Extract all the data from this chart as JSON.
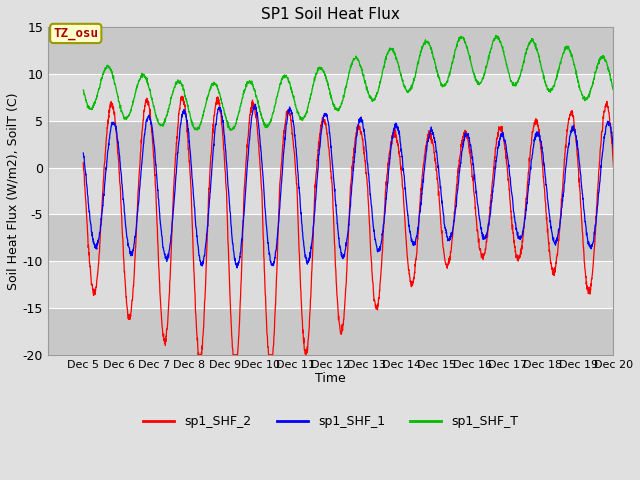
{
  "title": "SP1 Soil Heat Flux",
  "xlabel": "Time",
  "ylabel": "Soil Heat Flux (W/m2), SoilT (C)",
  "xlim_days": [
    4.0,
    20.0
  ],
  "ylim": [
    -20,
    15
  ],
  "yticks": [
    -20,
    -15,
    -10,
    -5,
    0,
    5,
    10,
    15
  ],
  "xtick_labels": [
    "Dec 5",
    "Dec 6",
    "Dec 7",
    "Dec 8",
    "Dec 9",
    "Dec 10",
    "Dec 11",
    "Dec 12",
    "Dec 13",
    "Dec 14",
    "Dec 15",
    "Dec 16",
    "Dec 17",
    "Dec 18",
    "Dec 19",
    "Dec 20"
  ],
  "color_red": "#FF0000",
  "color_blue": "#0000FF",
  "color_green": "#00BB00",
  "legend_labels": [
    "sp1_SHF_2",
    "sp1_SHF_1",
    "sp1_SHF_T"
  ],
  "annotation_text": "TZ_osu",
  "annotation_color": "#AA0000",
  "annotation_bg": "#FFFFCC",
  "background_color": "#E0E0E0",
  "band_light": "#DCDCDC",
  "band_dark": "#C8C8C8",
  "figsize": [
    6.4,
    4.8
  ],
  "dpi": 100
}
